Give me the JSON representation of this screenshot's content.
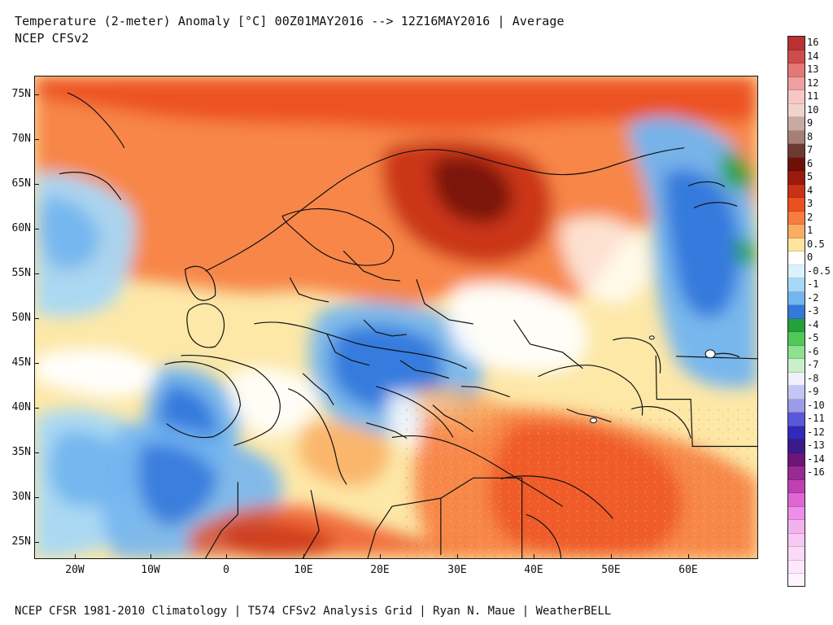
{
  "title_lines": [
    "Temperature (2-meter) Anomaly  [°C] 00Z01MAY2016 --> 12Z16MAY2016 | Average",
    "NCEP CFSv2"
  ],
  "footer": "NCEP CFSR 1981-2010 Climatology | T574 CFSv2 Analysis Grid | Ryan N. Maue | WeatherBELL",
  "latitude_labels": [
    "75N",
    "70N",
    "65N",
    "60N",
    "55N",
    "50N",
    "45N",
    "40N",
    "35N",
    "30N",
    "25N"
  ],
  "longitude_labels": [
    "20W",
    "10W",
    "0",
    "10E",
    "20E",
    "30E",
    "40E",
    "50E",
    "60E"
  ],
  "colorbar": [
    {
      "label": "16",
      "color": "#b83232"
    },
    {
      "label": "14",
      "color": "#cf4c4c"
    },
    {
      "label": "13",
      "color": "#e27878"
    },
    {
      "label": "12",
      "color": "#ef9f9f"
    },
    {
      "label": "11",
      "color": "#f7c7c7"
    },
    {
      "label": "10",
      "color": "#efd4ce"
    },
    {
      "label": "9",
      "color": "#c8aaa2"
    },
    {
      "label": "8",
      "color": "#a77f76"
    },
    {
      "label": "7",
      "color": "#6b3b32"
    },
    {
      "label": "6",
      "color": "#6f1008"
    },
    {
      "label": "5",
      "color": "#9a1a0d"
    },
    {
      "label": "4",
      "color": "#c83216"
    },
    {
      "label": "3",
      "color": "#ec4f1f"
    },
    {
      "label": "2",
      "color": "#f67d3f"
    },
    {
      "label": "1",
      "color": "#f9ad62"
    },
    {
      "label": "0.5",
      "color": "#fde69b"
    },
    {
      "label": "0",
      "color": "#ffffff"
    },
    {
      "label": "-0.5",
      "color": "#d9f2fd"
    },
    {
      "label": "-1",
      "color": "#a7d8f7"
    },
    {
      "label": "-2",
      "color": "#73b5ef"
    },
    {
      "label": "-3",
      "color": "#3478dc"
    },
    {
      "label": "-4",
      "color": "#23a13a"
    },
    {
      "label": "-5",
      "color": "#50c85a"
    },
    {
      "label": "-6",
      "color": "#8fe08f"
    },
    {
      "label": "-7",
      "color": "#c9f0c9"
    },
    {
      "label": "-8",
      "color": "#f0f0ff"
    },
    {
      "label": "-9",
      "color": "#c5c5f5"
    },
    {
      "label": "-10",
      "color": "#9b9be8"
    },
    {
      "label": "-11",
      "color": "#5a58d7"
    },
    {
      "label": "-12",
      "color": "#3328ba"
    },
    {
      "label": "-13",
      "color": "#3b1a89"
    },
    {
      "label": "-14",
      "color": "#6c1677"
    },
    {
      "label": "-16",
      "color": "#9a2a93"
    },
    {
      "label": "",
      "color": "#c03fb5"
    },
    {
      "label": "",
      "color": "#df67d4"
    },
    {
      "label": "",
      "color": "#ee8ee7"
    },
    {
      "label": "",
      "color": "#f4b1ef"
    },
    {
      "label": "",
      "color": "#f8c8f4"
    },
    {
      "label": "",
      "color": "#fbdaf8"
    },
    {
      "label": "",
      "color": "#fde8fb"
    },
    {
      "label": "",
      "color": "#fff4fe"
    }
  ]
}
